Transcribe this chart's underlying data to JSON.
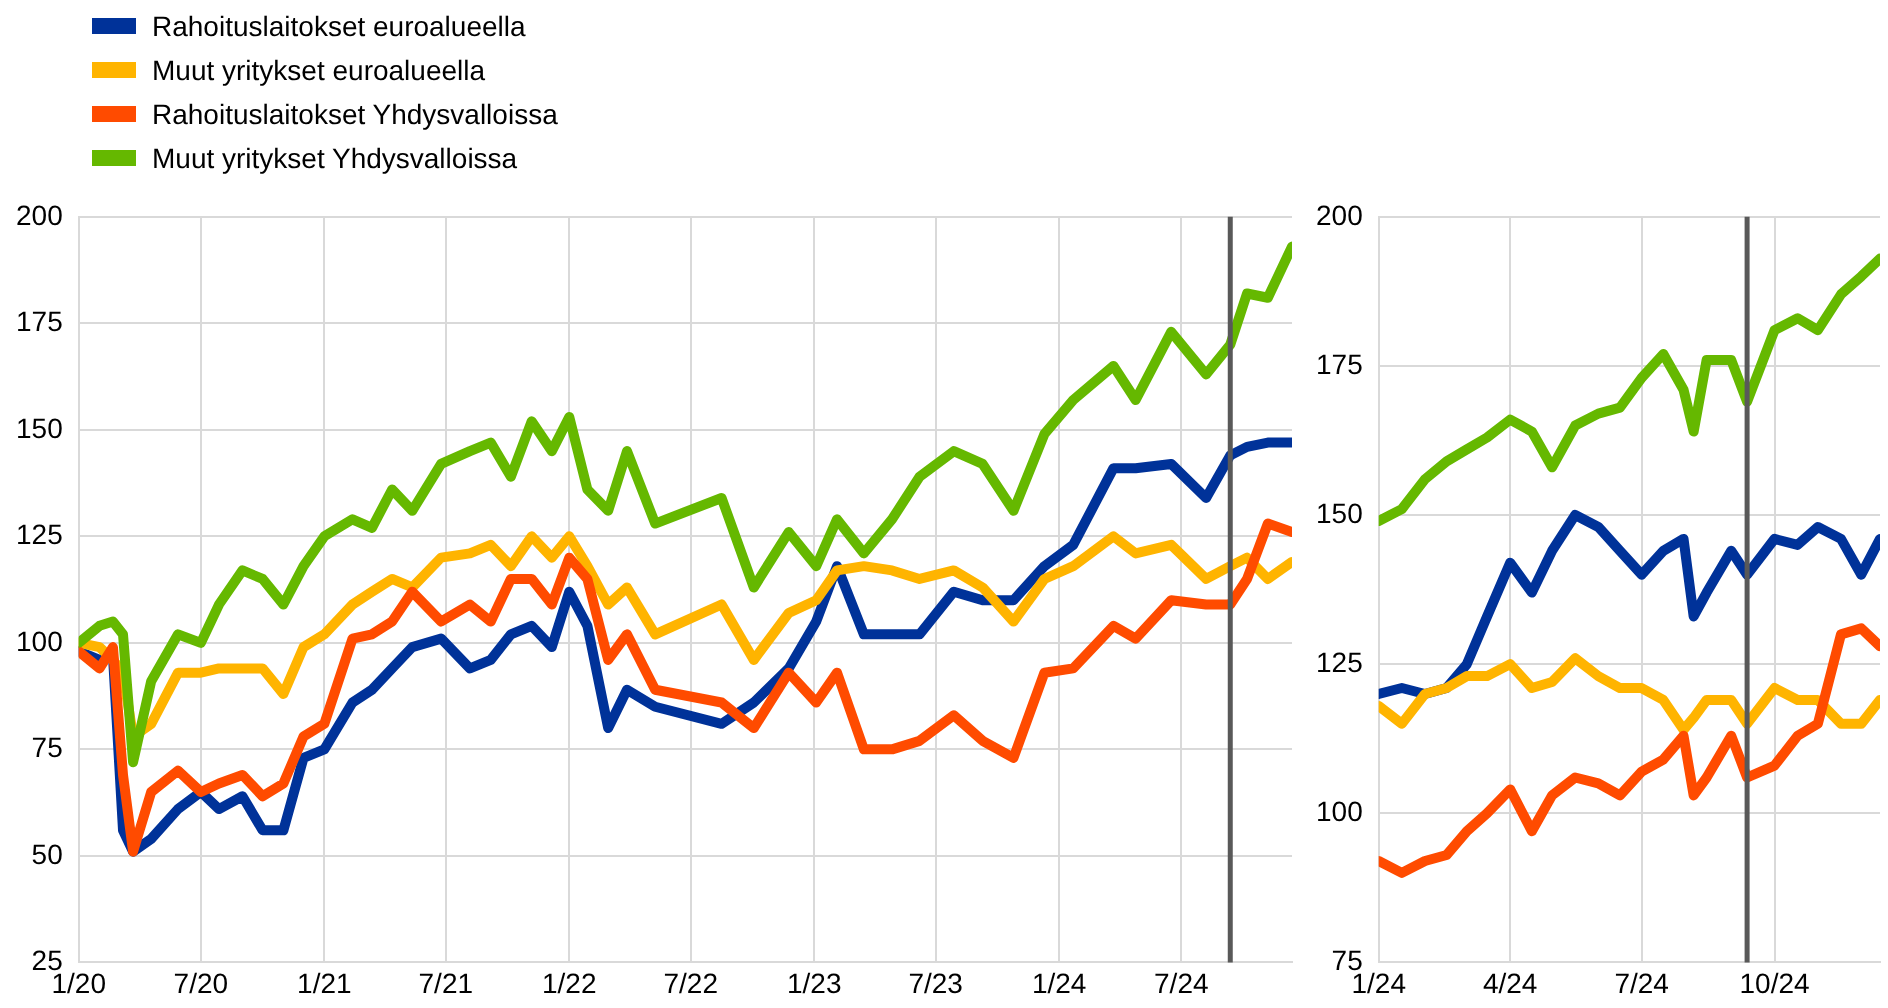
{
  "chart_data": [
    {
      "type": "line",
      "legend": "top left",
      "grid": true,
      "line_style": "solid",
      "marker": "none",
      "x": [
        "2020-01-01",
        "2020-02-01",
        "2020-02-21",
        "2020-03-07",
        "2020-03-22",
        "2020-04-18",
        "2020-05-28",
        "2020-07-01",
        "2020-07-28",
        "2020-09-01",
        "2020-10-01",
        "2020-11-01",
        "2020-12-01",
        "2021-01-01",
        "2021-02-12",
        "2021-03-13",
        "2021-04-12",
        "2021-05-12",
        "2021-06-24",
        "2021-08-06",
        "2021-09-06",
        "2021-10-06",
        "2021-11-06",
        "2021-12-06",
        "2022-01-01",
        "2022-01-28",
        "2022-02-28",
        "2022-03-28",
        "2022-05-09",
        "2022-08-16",
        "2022-10-03",
        "2022-11-24",
        "2023-01-04",
        "2023-02-04",
        "2023-03-16",
        "2023-04-27",
        "2023-06-07",
        "2023-07-28",
        "2023-09-09",
        "2023-10-25",
        "2023-12-10",
        "2024-01-22",
        "2024-03-22",
        "2024-04-24",
        "2024-06-16",
        "2024-08-07",
        "2024-09-12",
        "2024-10-07",
        "2024-11-07",
        "2024-12-13"
      ],
      "series": [
        {
          "name": "Rahoituslaitokset euroalueella",
          "color": "#003299",
          "values": [
            98,
            96,
            97,
            56,
            51,
            54,
            61,
            65,
            61,
            64,
            56,
            56,
            73,
            75,
            86,
            89,
            94,
            99,
            101,
            94,
            96,
            102,
            104,
            99,
            112,
            104,
            80,
            89,
            85,
            81,
            86,
            94,
            105,
            118,
            102,
            102,
            102,
            112,
            110,
            110,
            118,
            123,
            141,
            141,
            142,
            134,
            144,
            146,
            147,
            147
          ]
        },
        {
          "name": "Muut yritykset euroalueella",
          "color": "#ffb400",
          "values": [
            100,
            99,
            96,
            93,
            78,
            81,
            93,
            93,
            94,
            94,
            94,
            88,
            99,
            102,
            109,
            112,
            115,
            113,
            120,
            121,
            123,
            118,
            125,
            120,
            125,
            118,
            109,
            113,
            102,
            109,
            96,
            107,
            110,
            117,
            118,
            117,
            115,
            117,
            113,
            105,
            115,
            118,
            125,
            121,
            123,
            115,
            118,
            120,
            115,
            119
          ]
        },
        {
          "name": "Rahoituslaitokset Yhdysvalloissa",
          "color": "#ff4b00",
          "values": [
            98,
            94,
            99,
            69,
            51,
            65,
            70,
            65,
            67,
            69,
            64,
            67,
            78,
            81,
            101,
            102,
            105,
            112,
            105,
            109,
            105,
            115,
            115,
            109,
            120,
            115,
            96,
            102,
            89,
            86,
            80,
            93,
            86,
            93,
            75,
            75,
            77,
            83,
            77,
            73,
            93,
            94,
            104,
            101,
            110,
            109,
            109,
            115,
            128,
            126
          ]
        },
        {
          "name": "Muut yritykset Yhdysvalloissa",
          "color": "#65b800",
          "values": [
            100,
            104,
            105,
            102,
            72,
            91,
            102,
            100,
            109,
            117,
            115,
            109,
            118,
            125,
            129,
            127,
            136,
            131,
            142,
            145,
            147,
            139,
            152,
            145,
            153,
            136,
            131,
            145,
            128,
            134,
            113,
            126,
            118,
            129,
            121,
            129,
            139,
            145,
            142,
            131,
            149,
            157,
            165,
            157,
            173,
            163,
            170,
            182,
            181,
            193
          ]
        }
      ],
      "xlim": [
        "2020-01-01",
        "2024-12-13"
      ],
      "xticks": [
        {
          "value": "2020-01-01",
          "label": "1/20"
        },
        {
          "value": "2020-07-01",
          "label": "7/20"
        },
        {
          "value": "2021-01-01",
          "label": "1/21"
        },
        {
          "value": "2021-07-01",
          "label": "7/21"
        },
        {
          "value": "2022-01-01",
          "label": "1/22"
        },
        {
          "value": "2022-07-01",
          "label": "7/22"
        },
        {
          "value": "2023-01-01",
          "label": "1/23"
        },
        {
          "value": "2023-07-01",
          "label": "7/23"
        },
        {
          "value": "2024-01-01",
          "label": "1/24"
        },
        {
          "value": "2024-07-01",
          "label": "7/24"
        }
      ],
      "ylim": [
        25,
        200
      ],
      "yticks": [
        25,
        50,
        75,
        100,
        125,
        150,
        175,
        200
      ],
      "ref_lines": [
        {
          "axis": "x",
          "value": "2024-09-12",
          "color": "#595959"
        }
      ]
    },
    {
      "type": "line",
      "grid": true,
      "line_style": "solid",
      "marker": "none",
      "x": [
        "2024-01-01",
        "2024-01-17",
        "2024-02-02",
        "2024-02-17",
        "2024-03-02",
        "2024-03-16",
        "2024-04-01",
        "2024-04-16",
        "2024-04-30",
        "2024-05-16",
        "2024-06-01",
        "2024-06-16",
        "2024-07-01",
        "2024-07-16",
        "2024-07-30",
        "2024-08-06",
        "2024-08-15",
        "2024-09-01",
        "2024-09-12",
        "2024-10-01",
        "2024-10-17",
        "2024-10-31",
        "2024-11-16",
        "2024-11-30",
        "2024-12-13"
      ],
      "series": [
        {
          "color": "#003299",
          "values": [
            120,
            121,
            120,
            121,
            125,
            133,
            142,
            137,
            144,
            150,
            148,
            144,
            140,
            144,
            146,
            133,
            137,
            144,
            140,
            146,
            145,
            148,
            146,
            140,
            146
          ]
        },
        {
          "color": "#ffb400",
          "values": [
            118,
            115,
            120,
            121,
            123,
            123,
            125,
            121,
            122,
            126,
            123,
            121,
            121,
            119,
            114,
            116,
            119,
            119,
            115,
            121,
            119,
            119,
            115,
            115,
            119
          ]
        },
        {
          "color": "#ff4b00",
          "values": [
            92,
            90,
            92,
            93,
            97,
            100,
            104,
            97,
            103,
            106,
            105,
            103,
            107,
            109,
            113,
            103,
            106,
            113,
            106,
            108,
            113,
            115,
            130,
            131,
            128
          ]
        },
        {
          "color": "#65b800",
          "values": [
            149,
            151,
            156,
            159,
            161,
            163,
            166,
            164,
            158,
            165,
            167,
            168,
            173,
            177,
            171,
            164,
            176,
            176,
            169,
            181,
            183,
            181,
            187,
            190,
            193
          ]
        }
      ],
      "xlim": [
        "2024-01-01",
        "2024-12-13"
      ],
      "xticks": [
        {
          "value": "2024-01-01",
          "label": "1/24"
        },
        {
          "value": "2024-04-01",
          "label": "4/24"
        },
        {
          "value": "2024-07-01",
          "label": "7/24"
        },
        {
          "value": "2024-10-01",
          "label": "10/24"
        }
      ],
      "ylim": [
        75,
        200
      ],
      "yticks": [
        75,
        100,
        125,
        150,
        175,
        200
      ],
      "ref_lines": [
        {
          "axis": "x",
          "value": "2024-09-12",
          "color": "#595959"
        }
      ]
    }
  ]
}
